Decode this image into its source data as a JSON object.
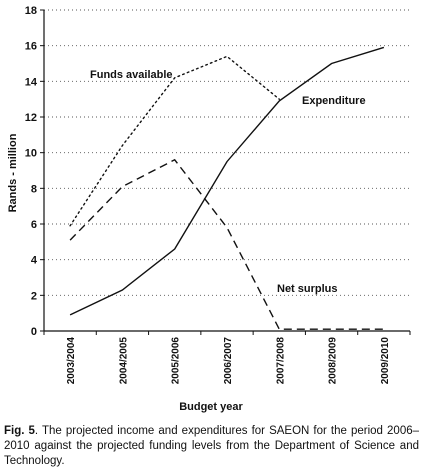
{
  "chart_data": {
    "type": "line",
    "x": [
      "2003/2004",
      "2004/2005",
      "2005/2006",
      "2006/2007",
      "2007/2008",
      "2008/2009",
      "2009/2010"
    ],
    "xlabel": "Budget year",
    "ylabel": "Rands - million",
    "ylim": [
      0,
      18
    ],
    "yticks": [
      0,
      2,
      4,
      6,
      8,
      10,
      12,
      14,
      16,
      18
    ],
    "grid": "horizontal dotted",
    "series": [
      {
        "name": "Funds available",
        "style": "dotted",
        "color": "#111111",
        "values": [
          5.9,
          10.4,
          14.2,
          15.4,
          13.0,
          null,
          null
        ]
      },
      {
        "name": "Expenditure",
        "style": "solid",
        "color": "#111111",
        "values": [
          0.9,
          2.3,
          4.6,
          9.5,
          12.9,
          15.0,
          15.9
        ]
      },
      {
        "name": "Net surplus",
        "style": "dashed",
        "color": "#111111",
        "values": [
          5.1,
          8.1,
          9.6,
          5.8,
          0.1,
          0.1,
          0.1
        ]
      }
    ]
  },
  "caption": {
    "label": "Fig. 5",
    "text": ". The projected income and expenditures for SAEON for the period 2006–2010 against the projected funding levels from the Department of Science and Technology."
  }
}
